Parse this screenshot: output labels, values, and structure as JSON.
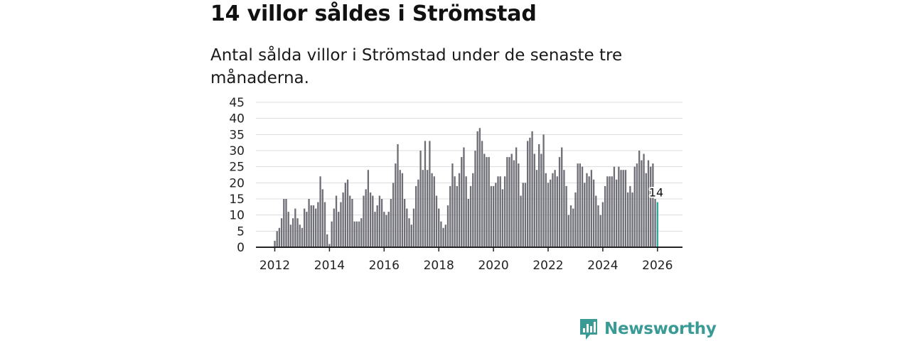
{
  "header": {
    "title": "14 villor såldes i Strömstad",
    "subtitle": "Antal sålda villor i Strömstad under de senaste tre månaderna."
  },
  "brand": {
    "name": "Newsworthy",
    "color": "#3a9a96"
  },
  "colors": {
    "bar": "#6e6e76",
    "highlight": "#2aa8a0",
    "grid": "#dcdcdc",
    "axis": "#222222"
  },
  "chart_data": {
    "type": "bar",
    "title": "Antal sålda villor i Strömstad",
    "xlabel": "",
    "ylabel": "",
    "ylim": [
      0,
      45
    ],
    "yticks": [
      0,
      5,
      10,
      15,
      20,
      25,
      30,
      35,
      40,
      45
    ],
    "xticks": [
      "2012",
      "2014",
      "2016",
      "2018",
      "2020",
      "2022",
      "2024",
      "2026"
    ],
    "start_year": 2012,
    "start_month": 1,
    "last_label": "14",
    "values": [
      2,
      5,
      6,
      9,
      15,
      15,
      11,
      7,
      9,
      12,
      9,
      7,
      6,
      12,
      11,
      15,
      13,
      13,
      12,
      14,
      22,
      18,
      14,
      4,
      1,
      8,
      12,
      16,
      11,
      14,
      17,
      20,
      21,
      16,
      15,
      8,
      8,
      8,
      9,
      16,
      18,
      24,
      17,
      16,
      11,
      13,
      16,
      15,
      11,
      10,
      11,
      15,
      20,
      26,
      32,
      24,
      23,
      15,
      12,
      9,
      7,
      12,
      19,
      21,
      30,
      24,
      33,
      24,
      33,
      23,
      22,
      16,
      12,
      8,
      6,
      7,
      13,
      19,
      26,
      22,
      19,
      23,
      28,
      31,
      22,
      15,
      19,
      23,
      30,
      36,
      37,
      33,
      29,
      28,
      28,
      19,
      19,
      20,
      22,
      22,
      18,
      22,
      28,
      28,
      29,
      27,
      31,
      26,
      16,
      20,
      20,
      33,
      34,
      36,
      29,
      24,
      32,
      29,
      35,
      23,
      20,
      21,
      23,
      24,
      22,
      28,
      31,
      24,
      19,
      10,
      13,
      12,
      17,
      26,
      26,
      25,
      20,
      23,
      22,
      24,
      21,
      16,
      13,
      10,
      14,
      19,
      22,
      22,
      22,
      25,
      21,
      25,
      24,
      24,
      24,
      17,
      19,
      17,
      25,
      26,
      30,
      27,
      29,
      23,
      27,
      25,
      26,
      15,
      14
    ]
  }
}
